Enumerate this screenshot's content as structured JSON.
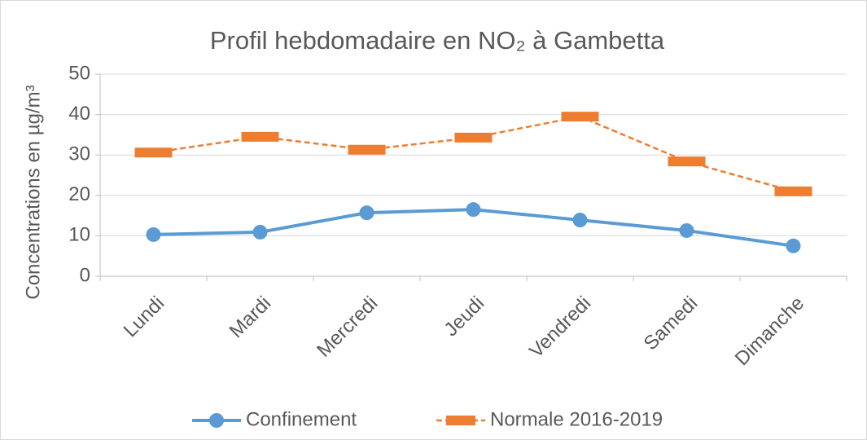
{
  "chart_data": {
    "type": "line",
    "title": "Profil hebdomadaire en NO₂ à Gambetta",
    "y_label": "Concentrations en µg/m³",
    "categories": [
      "Lundi",
      "Mardi",
      "Mercredi",
      "Jeudi",
      "Vendredi",
      "Samedi",
      "Dimanche"
    ],
    "series": [
      {
        "name": "Confinement",
        "color": "#5b9bd5",
        "style": "solid",
        "marker": "circle",
        "values": [
          10.3,
          10.9,
          15.7,
          16.5,
          13.9,
          11.3,
          7.5
        ]
      },
      {
        "name": "Normale 2016-2019",
        "color": "#ed7d31",
        "style": "dashed",
        "marker": "dash",
        "values": [
          30.6,
          34.5,
          31.3,
          34.3,
          39.5,
          28.4,
          21.0
        ]
      }
    ],
    "ylim": [
      0,
      50
    ],
    "yticks": [
      0,
      10,
      20,
      30,
      40,
      50
    ],
    "grid": true,
    "legend": "bottom"
  }
}
